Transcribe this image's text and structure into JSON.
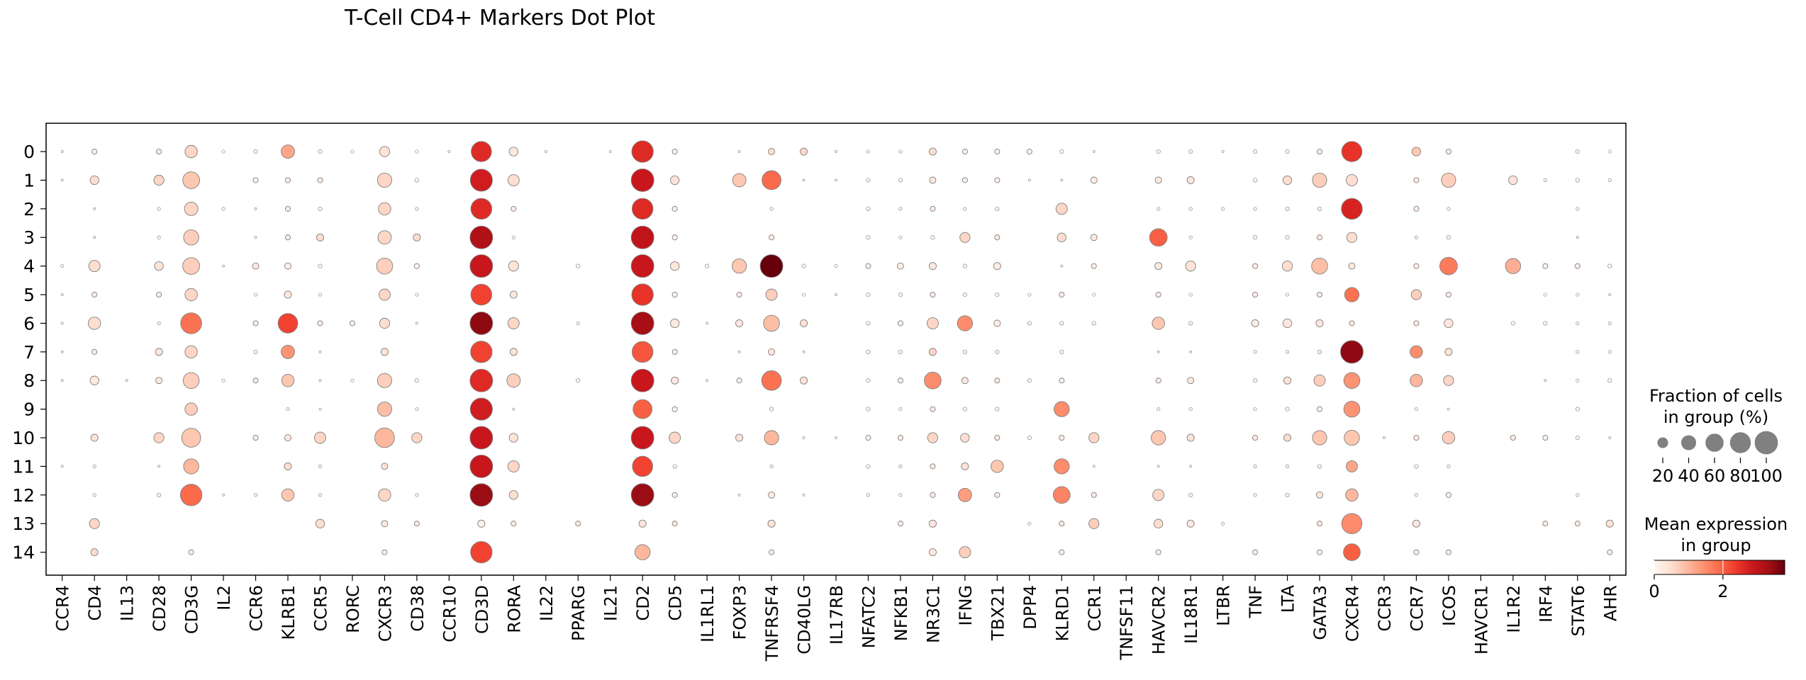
{
  "chart_data": {
    "type": "dotplot",
    "title": "T-Cell CD4+ Markers Dot Plot",
    "genes": [
      "CCR4",
      "CD4",
      "IL13",
      "CD28",
      "CD3G",
      "IL2",
      "CCR6",
      "KLRB1",
      "CCR5",
      "RORC",
      "CXCR3",
      "CD38",
      "CCR10",
      "CD3D",
      "RORA",
      "IL22",
      "PPARG",
      "IL21",
      "CD2",
      "CD5",
      "IL1RL1",
      "FOXP3",
      "TNFRSF4",
      "CD40LG",
      "IL17RB",
      "NFATC2",
      "NFKB1",
      "NR3C1",
      "IFNG",
      "TBX21",
      "DPP4",
      "KLRD1",
      "CCR1",
      "TNFSF11",
      "HAVCR2",
      "IL18R1",
      "LTBR",
      "TNF",
      "LTA",
      "GATA3",
      "CXCR4",
      "CCR3",
      "CCR7",
      "ICOS",
      "HAVCR1",
      "IL1R2",
      "IRF4",
      "STAT6",
      "AHR"
    ],
    "groups": [
      "0",
      "1",
      "2",
      "3",
      "4",
      "5",
      "6",
      "7",
      "8",
      "9",
      "10",
      "11",
      "12",
      "13",
      "14"
    ],
    "fraction_percent": [
      [
        1,
        5,
        0,
        5,
        30,
        2,
        3,
        35,
        3,
        2,
        20,
        2,
        1,
        80,
        15,
        1,
        0,
        1,
        90,
        5,
        0,
        1,
        8,
        10,
        1,
        2,
        2,
        10,
        5,
        5,
        5,
        3,
        1,
        0,
        3,
        3,
        1,
        3,
        3,
        5,
        80,
        0,
        15,
        5,
        0,
        0,
        0,
        3,
        2
      ],
      [
        1,
        15,
        0,
        20,
        55,
        0,
        5,
        5,
        5,
        0,
        40,
        3,
        0,
        95,
        25,
        0,
        0,
        0,
        100,
        15,
        0,
        35,
        70,
        1,
        1,
        3,
        3,
        8,
        5,
        5,
        1,
        1,
        8,
        0,
        8,
        10,
        0,
        3,
        15,
        40,
        25,
        0,
        5,
        40,
        0,
        15,
        2,
        3,
        2
      ],
      [
        0,
        1,
        0,
        2,
        35,
        2,
        1,
        5,
        3,
        0,
        30,
        2,
        0,
        85,
        5,
        0,
        0,
        0,
        85,
        5,
        0,
        0,
        2,
        0,
        0,
        3,
        2,
        5,
        2,
        3,
        0,
        25,
        0,
        0,
        2,
        2,
        2,
        2,
        3,
        3,
        85,
        0,
        5,
        2,
        0,
        0,
        0,
        2,
        0
      ],
      [
        0,
        1,
        0,
        2,
        45,
        0,
        1,
        5,
        10,
        0,
        35,
        10,
        0,
        100,
        2,
        0,
        0,
        0,
        100,
        5,
        0,
        0,
        5,
        0,
        0,
        3,
        2,
        3,
        20,
        5,
        0,
        15,
        8,
        0,
        60,
        2,
        0,
        3,
        3,
        5,
        20,
        0,
        2,
        3,
        0,
        0,
        0,
        1,
        0
      ],
      [
        2,
        25,
        0,
        15,
        55,
        1,
        8,
        8,
        3,
        0,
        50,
        5,
        0,
        100,
        20,
        0,
        3,
        0,
        100,
        15,
        3,
        40,
        100,
        3,
        2,
        5,
        8,
        10,
        3,
        10,
        0,
        1,
        5,
        0,
        10,
        20,
        0,
        5,
        20,
        50,
        8,
        0,
        5,
        60,
        0,
        45,
        5,
        5,
        3
      ],
      [
        1,
        5,
        0,
        5,
        30,
        0,
        2,
        10,
        2,
        0,
        25,
        2,
        0,
        85,
        10,
        0,
        0,
        0,
        90,
        5,
        0,
        5,
        25,
        2,
        1,
        3,
        3,
        5,
        3,
        3,
        2,
        5,
        2,
        0,
        5,
        2,
        0,
        5,
        2,
        5,
        40,
        0,
        20,
        5,
        0,
        0,
        2,
        2,
        1
      ],
      [
        1,
        30,
        0,
        2,
        85,
        0,
        5,
        75,
        5,
        5,
        20,
        1,
        0,
        100,
        25,
        0,
        2,
        0,
        100,
        15,
        1,
        10,
        50,
        10,
        0,
        3,
        5,
        25,
        45,
        8,
        3,
        3,
        3,
        0,
        30,
        3,
        0,
        10,
        15,
        10,
        5,
        0,
        5,
        15,
        0,
        3,
        3,
        2,
        2
      ],
      [
        1,
        5,
        0,
        10,
        30,
        0,
        3,
        35,
        1,
        0,
        10,
        0,
        0,
        90,
        10,
        0,
        0,
        0,
        85,
        5,
        0,
        1,
        8,
        1,
        0,
        3,
        3,
        10,
        3,
        3,
        0,
        3,
        0,
        0,
        1,
        1,
        0,
        2,
        2,
        3,
        100,
        0,
        30,
        10,
        0,
        0,
        0,
        2,
        2
      ],
      [
        1,
        15,
        1,
        8,
        50,
        2,
        5,
        30,
        1,
        2,
        40,
        3,
        0,
        100,
        35,
        0,
        3,
        0,
        100,
        10,
        1,
        5,
        75,
        10,
        0,
        3,
        5,
        55,
        8,
        5,
        3,
        5,
        0,
        0,
        5,
        8,
        0,
        3,
        10,
        25,
        50,
        0,
        30,
        20,
        0,
        0,
        1,
        2,
        3
      ],
      [
        0,
        0,
        0,
        0,
        30,
        0,
        0,
        2,
        1,
        0,
        40,
        2,
        0,
        95,
        1,
        0,
        0,
        0,
        70,
        5,
        0,
        0,
        3,
        0,
        0,
        3,
        2,
        5,
        3,
        3,
        0,
        45,
        0,
        0,
        2,
        2,
        0,
        2,
        3,
        5,
        50,
        0,
        2,
        1,
        0,
        0,
        0,
        3,
        0
      ],
      [
        0,
        10,
        0,
        20,
        70,
        0,
        5,
        8,
        25,
        0,
        75,
        20,
        0,
        100,
        15,
        0,
        0,
        0,
        100,
        25,
        0,
        10,
        40,
        1,
        1,
        5,
        5,
        20,
        15,
        5,
        3,
        5,
        20,
        0,
        40,
        10,
        0,
        5,
        10,
        40,
        45,
        1,
        5,
        30,
        0,
        5,
        5,
        3,
        1
      ],
      [
        1,
        2,
        0,
        1,
        45,
        0,
        0,
        10,
        2,
        0,
        8,
        0,
        0,
        100,
        25,
        0,
        0,
        0,
        80,
        3,
        0,
        0,
        2,
        0,
        0,
        3,
        2,
        5,
        10,
        30,
        0,
        45,
        1,
        0,
        1,
        1,
        0,
        2,
        2,
        3,
        25,
        0,
        3,
        2,
        0,
        0,
        0,
        0,
        0
      ],
      [
        0,
        2,
        0,
        3,
        90,
        1,
        2,
        30,
        2,
        0,
        30,
        2,
        0,
        100,
        15,
        0,
        0,
        0,
        100,
        5,
        0,
        1,
        8,
        1,
        0,
        2,
        2,
        5,
        35,
        5,
        0,
        55,
        5,
        0,
        25,
        3,
        0,
        2,
        3,
        8,
        30,
        0,
        2,
        5,
        0,
        0,
        0,
        2,
        0
      ],
      [
        0,
        20,
        0,
        0,
        0,
        0,
        0,
        0,
        15,
        0,
        8,
        5,
        0,
        10,
        5,
        0,
        5,
        0,
        10,
        5,
        0,
        0,
        10,
        0,
        0,
        0,
        5,
        10,
        0,
        0,
        2,
        5,
        20,
        0,
        15,
        10,
        2,
        0,
        0,
        5,
        80,
        0,
        10,
        0,
        0,
        0,
        5,
        5,
        10
      ],
      [
        0,
        10,
        0,
        0,
        5,
        0,
        0,
        0,
        0,
        0,
        5,
        0,
        0,
        90,
        0,
        0,
        0,
        0,
        45,
        0,
        0,
        0,
        5,
        0,
        0,
        0,
        0,
        10,
        25,
        0,
        0,
        5,
        0,
        0,
        5,
        0,
        0,
        5,
        0,
        5,
        55,
        0,
        5,
        5,
        0,
        0,
        0,
        0,
        5
      ]
    ],
    "mean_expression": [
      [
        0,
        0.1,
        0,
        0.2,
        0.6,
        0,
        0.1,
        1.2,
        0.1,
        0,
        0.4,
        0.1,
        0,
        2.6,
        0.3,
        0,
        0,
        0,
        2.6,
        0.1,
        0,
        0,
        0.5,
        0.6,
        0,
        0.1,
        0.1,
        0.5,
        0.1,
        0.1,
        0.1,
        0,
        0,
        0,
        0.1,
        0.1,
        0,
        0.1,
        0.1,
        0.2,
        2.5,
        0,
        0.8,
        0.2,
        0,
        0,
        0,
        0.1,
        0
      ],
      [
        0,
        0.5,
        0,
        0.6,
        0.8,
        0,
        0.1,
        0.2,
        0.2,
        0,
        0.6,
        0.1,
        0,
        2.8,
        0.5,
        0,
        0,
        0,
        2.9,
        0.4,
        0,
        0.8,
        1.9,
        0,
        0,
        0.1,
        0.1,
        0.3,
        0.1,
        0.1,
        0,
        0,
        0.2,
        0,
        0.3,
        0.3,
        0,
        0.1,
        0.5,
        0.7,
        0.5,
        0,
        0.2,
        0.7,
        0,
        0.4,
        0,
        0.1,
        0
      ],
      [
        0,
        0,
        0,
        0.1,
        0.6,
        0,
        0,
        0.2,
        0.1,
        0,
        0.6,
        0.1,
        0,
        2.6,
        0.2,
        0,
        0,
        0,
        2.6,
        0.1,
        0,
        0,
        0.1,
        0,
        0,
        0.1,
        0.1,
        0.2,
        0,
        0.1,
        0,
        0.6,
        0,
        0,
        0.1,
        0.1,
        0,
        0.1,
        0.1,
        0.1,
        2.7,
        0,
        0.2,
        0.1,
        0,
        0,
        0,
        0.1,
        0
      ],
      [
        0,
        0,
        0,
        0.1,
        0.7,
        0,
        0,
        0.2,
        0.5,
        0,
        0.6,
        0.5,
        0,
        3.2,
        0.1,
        0,
        0,
        0,
        3.0,
        0.1,
        0,
        0,
        0.2,
        0,
        0,
        0.1,
        0.1,
        0.1,
        0.6,
        0.2,
        0,
        0.5,
        0.3,
        0,
        2.0,
        0.1,
        0,
        0.1,
        0.1,
        0.2,
        0.5,
        0,
        0.1,
        0.1,
        0,
        0,
        0,
        0,
        0
      ],
      [
        0,
        0.5,
        0,
        0.4,
        0.7,
        0,
        0.3,
        0.2,
        0.1,
        0,
        0.7,
        0.1,
        0,
        2.9,
        0.4,
        0,
        0.1,
        0,
        2.9,
        0.3,
        0.1,
        0.8,
        3.8,
        0.1,
        0,
        0.1,
        0.2,
        0.3,
        0.1,
        0.2,
        0,
        0,
        0.2,
        0,
        0.3,
        0.4,
        0,
        0.2,
        0.5,
        0.9,
        0.3,
        0,
        0.2,
        1.7,
        0,
        1.1,
        0.1,
        0.2,
        0
      ],
      [
        0,
        0.2,
        0,
        0.2,
        0.6,
        0,
        0.1,
        0.3,
        0.1,
        0,
        0.6,
        0.1,
        0,
        2.3,
        0.3,
        0,
        0,
        0,
        2.5,
        0.1,
        0,
        0.2,
        0.7,
        0,
        0,
        0.1,
        0.1,
        0.2,
        0.1,
        0.1,
        0,
        0.2,
        0,
        0,
        0.2,
        0.1,
        0,
        0.2,
        0.1,
        0.2,
        1.8,
        0,
        0.7,
        0.2,
        0,
        0,
        0,
        0.1,
        0
      ],
      [
        0,
        0.5,
        0,
        0,
        1.8,
        0,
        0.2,
        2.3,
        0.2,
        0.1,
        0.5,
        0,
        0,
        3.5,
        0.6,
        0,
        0,
        0,
        3.3,
        0.3,
        0,
        0.3,
        0.9,
        0.4,
        0,
        0.1,
        0.1,
        0.6,
        1.5,
        0.2,
        0.1,
        0.1,
        0.1,
        0,
        0.8,
        0.1,
        0,
        0.2,
        0.3,
        0.3,
        0.3,
        0,
        0.2,
        0.3,
        0,
        0.1,
        0.1,
        0,
        0
      ],
      [
        0,
        0.2,
        0,
        0.3,
        0.6,
        0,
        0.1,
        1.4,
        0,
        0,
        0.4,
        0,
        0,
        2.3,
        0.4,
        0,
        0,
        0,
        2.1,
        0.1,
        0,
        0,
        0.3,
        0,
        0,
        0.1,
        0.1,
        0.6,
        0.1,
        0.1,
        0,
        0.1,
        0,
        0,
        0,
        0,
        0,
        0.1,
        0.1,
        0.2,
        3.5,
        0,
        1.5,
        0.4,
        0,
        0,
        0,
        0.1,
        0
      ],
      [
        0,
        0.3,
        0,
        0.3,
        0.7,
        0,
        0.2,
        0.8,
        0,
        0,
        0.7,
        0.1,
        0,
        2.6,
        0.7,
        0,
        0.1,
        0,
        2.9,
        0.3,
        0,
        0.1,
        1.8,
        0.4,
        0,
        0.1,
        0.1,
        1.5,
        0.3,
        0.2,
        0.1,
        0.1,
        0,
        0,
        0.2,
        0.3,
        0,
        0.1,
        0.4,
        0.7,
        1.4,
        0,
        1.0,
        0.6,
        0,
        0,
        0,
        0,
        0
      ],
      [
        0,
        0,
        0,
        0,
        0.7,
        0,
        0,
        0.1,
        0,
        0,
        0.9,
        0.1,
        0,
        2.8,
        0,
        0,
        0,
        0,
        2.0,
        0.1,
        0,
        0,
        0.1,
        0,
        0,
        0.1,
        0.1,
        0.2,
        0.1,
        0.1,
        0,
        1.5,
        0,
        0,
        0.1,
        0.1,
        0,
        0.1,
        0.1,
        0.2,
        1.4,
        0,
        0.1,
        0,
        0,
        0,
        0,
        0.1,
        0
      ],
      [
        0,
        0.4,
        0,
        0.6,
        0.8,
        0,
        0.2,
        0.3,
        0.6,
        0,
        1.0,
        0.6,
        0,
        2.9,
        0.4,
        0,
        0,
        0,
        2.9,
        0.6,
        0,
        0.4,
        1.0,
        0,
        0,
        0.1,
        0.2,
        0.6,
        0.5,
        0.2,
        0.1,
        0.2,
        0.6,
        0,
        0.8,
        0.4,
        0,
        0.2,
        0.5,
        0.8,
        0.8,
        0,
        0.2,
        0.7,
        0,
        0.2,
        0.1,
        0.1,
        0
      ],
      [
        0,
        0.1,
        0,
        0,
        1.0,
        0,
        0,
        0.5,
        0.1,
        0,
        0.4,
        0,
        0,
        2.9,
        0.6,
        0,
        0,
        0,
        2.3,
        0.1,
        0,
        0,
        0.1,
        0,
        0,
        0.1,
        0.1,
        0.2,
        0.4,
        0.8,
        0,
        1.5,
        0,
        0,
        0,
        0,
        0,
        0.1,
        0.1,
        0.2,
        1.2,
        0,
        0.1,
        0.1,
        0,
        0,
        0,
        0,
        0
      ],
      [
        0,
        0.1,
        0,
        0.1,
        1.9,
        0,
        0.1,
        0.8,
        0.1,
        0,
        0.6,
        0.1,
        0,
        3.4,
        0.5,
        0,
        0,
        0,
        3.4,
        0.1,
        0,
        0,
        0.2,
        0,
        0,
        0.1,
        0.1,
        0.2,
        1.3,
        0.2,
        0,
        1.6,
        0.2,
        0,
        0.6,
        0.1,
        0,
        0.1,
        0.1,
        0.3,
        1.0,
        0,
        0.1,
        0.1,
        0,
        0,
        0,
        0.1,
        0
      ],
      [
        0,
        0.6,
        0,
        0,
        0,
        0,
        0,
        0,
        0.5,
        0,
        0.3,
        0.2,
        0,
        0.1,
        0.2,
        0,
        0.2,
        0,
        0.3,
        0.2,
        0,
        0,
        0.4,
        0,
        0,
        0,
        0.2,
        0.3,
        0,
        0,
        0.1,
        0.2,
        0.7,
        0,
        0.5,
        0.3,
        0.1,
        0,
        0,
        0.2,
        1.5,
        0,
        0.3,
        0,
        0,
        0,
        0.2,
        0.2,
        0.4
      ],
      [
        0,
        0.5,
        0,
        0,
        0.2,
        0,
        0,
        0,
        0,
        0,
        0.2,
        0,
        0,
        2.3,
        0,
        0,
        0,
        0,
        1.0,
        0,
        0,
        0,
        0.2,
        0,
        0,
        0,
        0,
        0.3,
        0.7,
        0,
        0,
        0.2,
        0,
        0,
        0.2,
        0,
        0,
        0.2,
        0,
        0.2,
        2.0,
        0,
        0.2,
        0.2,
        0,
        0,
        0,
        0,
        0.2
      ]
    ],
    "legend_size": {
      "title": "Fraction of cells\nin group (%)",
      "title_lines": [
        "Fraction of cells",
        "in group (%)"
      ],
      "values": [
        20,
        40,
        60,
        80,
        100
      ],
      "tick_labels": [
        "20",
        "40",
        "60",
        "80",
        "100"
      ]
    },
    "legend_color": {
      "title": "Mean expression\nin group",
      "title_lines": [
        "Mean expression",
        "in group"
      ],
      "tick_values": [
        0,
        2
      ],
      "tick_labels": [
        "0",
        "2"
      ],
      "vmin": 0,
      "vmax": 3.8
    },
    "colormap": "Reds",
    "colormap_stops": [
      "#fff5f0",
      "#fee0d2",
      "#fcbba1",
      "#fc9272",
      "#fb6a4a",
      "#ef3b2c",
      "#cb181d",
      "#a50f15",
      "#67000d"
    ],
    "dot_edge_color": "#808080"
  }
}
